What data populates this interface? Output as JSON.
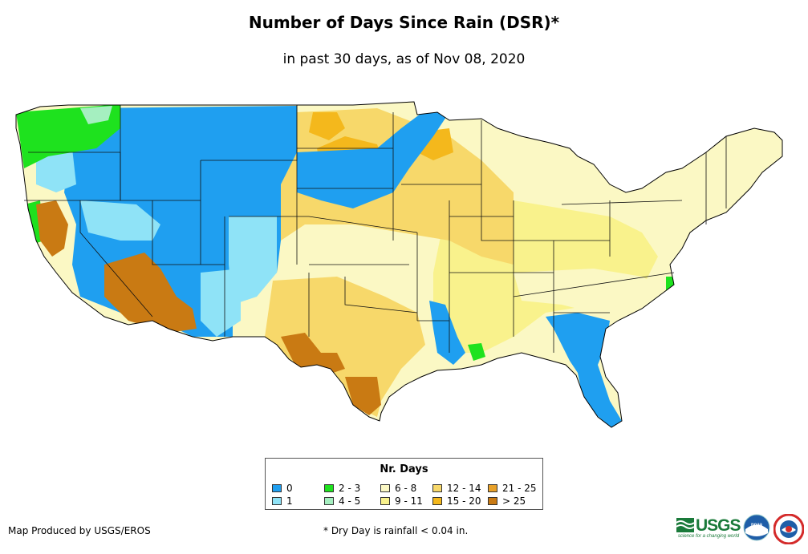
{
  "title": "Number of Days Since Rain (DSR)*",
  "subtitle": "in past 30 days, as of Nov 08, 2020",
  "legend": {
    "title": "Nr. Days",
    "items": [
      {
        "label": "0",
        "color": "#1f9ff0"
      },
      {
        "label": "1",
        "color": "#8fe3f7"
      },
      {
        "label": "2 - 3",
        "color": "#1ee21e"
      },
      {
        "label": "4 - 5",
        "color": "#a5efc0"
      },
      {
        "label": "6 - 8",
        "color": "#fbf8c4"
      },
      {
        "label": "9 - 11",
        "color": "#f9f28c"
      },
      {
        "label": "12 - 14",
        "color": "#f7d86a"
      },
      {
        "label": "15 - 20",
        "color": "#f4b81c"
      },
      {
        "label": "21 - 25",
        "color": "#e8a12a"
      },
      {
        "label": "> 25",
        "color": "#c97a13"
      }
    ]
  },
  "credit": "Map Produced by USGS/EROS",
  "footnote": "* Dry Day is rainfall < 0.04 in.",
  "logos": {
    "usgs": "USGS",
    "usgs_tagline": "science for a changing world",
    "noaa": "noaa"
  },
  "map_colors": {
    "c0": "#1f9ff0",
    "c1": "#8fe3f7",
    "c2": "#1ee21e",
    "c4": "#a5efc0",
    "c6": "#fbf8c4",
    "c9": "#f9f28c",
    "c12": "#f7d86a",
    "c15": "#f4b81c",
    "c21": "#e8a12a",
    "c25": "#c97a13"
  }
}
